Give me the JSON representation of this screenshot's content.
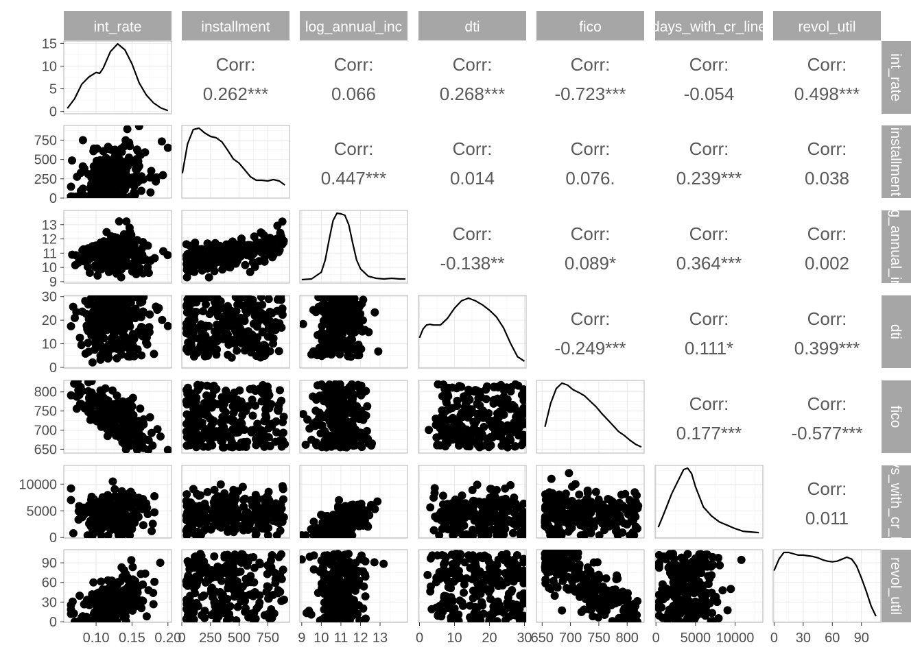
{
  "chart_data": {
    "type": "scatter-matrix",
    "variables": [
      "int_rate",
      "installment",
      "log_annual_inc",
      "dti",
      "fico",
      "days_with_cr_line",
      "revol_util"
    ],
    "column_strip_labels": [
      "int_rate",
      "installment",
      "log_annual_inc",
      "dti",
      "fico",
      "days_with_cr_line",
      "revol_util"
    ],
    "row_strip_labels": [
      "int_rate",
      "installment",
      "log_annual_inc",
      "dti",
      "fico",
      "days_with_cr_line",
      "revol_util"
    ],
    "corr_label": "Corr:",
    "correlations": [
      {
        "row": 0,
        "col": 1,
        "value": "0.262***"
      },
      {
        "row": 0,
        "col": 2,
        "value": "0.066"
      },
      {
        "row": 0,
        "col": 3,
        "value": "0.268***"
      },
      {
        "row": 0,
        "col": 4,
        "value": "-0.723***"
      },
      {
        "row": 0,
        "col": 5,
        "value": "-0.054"
      },
      {
        "row": 0,
        "col": 6,
        "value": "0.498***"
      },
      {
        "row": 1,
        "col": 2,
        "value": "0.447***"
      },
      {
        "row": 1,
        "col": 3,
        "value": "0.014"
      },
      {
        "row": 1,
        "col": 4,
        "value": "0.076."
      },
      {
        "row": 1,
        "col": 5,
        "value": "0.239***"
      },
      {
        "row": 1,
        "col": 6,
        "value": "0.038"
      },
      {
        "row": 2,
        "col": 3,
        "value": "-0.138**"
      },
      {
        "row": 2,
        "col": 4,
        "value": "0.089*"
      },
      {
        "row": 2,
        "col": 5,
        "value": "0.364***"
      },
      {
        "row": 2,
        "col": 6,
        "value": "0.002"
      },
      {
        "row": 3,
        "col": 4,
        "value": "-0.249***"
      },
      {
        "row": 3,
        "col": 5,
        "value": "0.111*"
      },
      {
        "row": 3,
        "col": 6,
        "value": "0.399***"
      },
      {
        "row": 4,
        "col": 5,
        "value": "0.177***"
      },
      {
        "row": 4,
        "col": 6,
        "value": "-0.577***"
      },
      {
        "row": 5,
        "col": 6,
        "value": "0.011"
      }
    ],
    "x_axes": [
      {
        "range": [
          0.055,
          0.205
        ],
        "ticks": [
          0.1,
          0.15,
          0.2
        ],
        "tick_labels": [
          "0.10",
          "0.15",
          "0.20"
        ]
      },
      {
        "range": [
          0,
          940
        ],
        "ticks": [
          0,
          250,
          500,
          750
        ],
        "tick_labels": [
          "0",
          "250",
          "500",
          "750"
        ]
      },
      {
        "range": [
          8.9,
          14.4
        ],
        "ticks": [
          9,
          10,
          11,
          12,
          13
        ],
        "tick_labels": [
          "9",
          "10",
          "11",
          "12",
          "13"
        ]
      },
      {
        "range": [
          -0.3,
          30.5
        ],
        "ticks": [
          0,
          10,
          20,
          30
        ],
        "tick_labels": [
          "0",
          "10",
          "20",
          "30"
        ]
      },
      {
        "range": [
          640,
          830
        ],
        "ticks": [
          650,
          700,
          750,
          800
        ],
        "tick_labels": [
          "650",
          "700",
          "750",
          "800"
        ]
      },
      {
        "range": [
          -100,
          13500
        ],
        "ticks": [
          0,
          5000,
          10000
        ],
        "tick_labels": [
          "0",
          "5000",
          "10000"
        ]
      },
      {
        "range": [
          -1,
          110
        ],
        "ticks": [
          0,
          30,
          60,
          90
        ],
        "tick_labels": [
          "0",
          "30",
          "60",
          "90"
        ]
      }
    ],
    "y_axes": [
      {
        "range": [
          -0.5,
          15.5
        ],
        "ticks": [
          0,
          5,
          10,
          15
        ],
        "tick_labels": [
          "0",
          "5",
          "10",
          "15"
        ]
      },
      {
        "range": [
          0,
          940
        ],
        "ticks": [
          0,
          250,
          500,
          750
        ],
        "tick_labels": [
          "0",
          "250",
          "500",
          "750"
        ]
      },
      {
        "range": [
          8.9,
          14.0
        ],
        "ticks": [
          9,
          10,
          11,
          12,
          13
        ],
        "tick_labels": [
          "9",
          "10",
          "11",
          "12",
          "13"
        ]
      },
      {
        "range": [
          -0.3,
          30.5
        ],
        "ticks": [
          0,
          10,
          20,
          30
        ],
        "tick_labels": [
          "0",
          "10",
          "20",
          "30"
        ]
      },
      {
        "range": [
          640,
          830
        ],
        "ticks": [
          650,
          700,
          750,
          800
        ],
        "tick_labels": [
          "650",
          "700",
          "750",
          "800"
        ]
      },
      {
        "range": [
          -100,
          13500
        ],
        "ticks": [
          0,
          5000,
          10000
        ],
        "tick_labels": [
          "0",
          "5000",
          "10000"
        ]
      },
      {
        "range": [
          -1,
          110
        ],
        "ticks": [
          0,
          30,
          60,
          90
        ],
        "tick_labels": [
          "0",
          "30",
          "60",
          "90"
        ]
      }
    ],
    "densities": [
      {
        "x": [
          0.06,
          0.07,
          0.08,
          0.09,
          0.1,
          0.105,
          0.11,
          0.12,
          0.13,
          0.14,
          0.15,
          0.16,
          0.17,
          0.18,
          0.19,
          0.2
        ],
        "y": [
          0.7,
          2.8,
          6.0,
          7.6,
          8.6,
          8.4,
          9.6,
          13.2,
          14.9,
          13.6,
          10.5,
          6.3,
          3.6,
          1.9,
          0.8,
          0.2
        ]
      },
      {
        "x": [
          5,
          50,
          100,
          150,
          200,
          250,
          300,
          350,
          400,
          450,
          500,
          550,
          600,
          650,
          700,
          750,
          800,
          850,
          900
        ],
        "y": [
          0.32,
          0.75,
          0.96,
          0.98,
          0.91,
          0.86,
          0.84,
          0.78,
          0.66,
          0.53,
          0.47,
          0.37,
          0.27,
          0.22,
          0.22,
          0.21,
          0.23,
          0.21,
          0.15
        ]
      },
      {
        "x": [
          9.0,
          9.5,
          10.0,
          10.2,
          10.4,
          10.6,
          10.8,
          11.0,
          11.2,
          11.4,
          11.6,
          11.8,
          12.0,
          12.4,
          12.8,
          13.2,
          13.6,
          14.0,
          14.3
        ],
        "y": [
          0.01,
          0.02,
          0.12,
          0.3,
          0.6,
          0.88,
          0.99,
          0.98,
          0.96,
          0.82,
          0.55,
          0.3,
          0.17,
          0.06,
          0.03,
          0.02,
          0.03,
          0.02,
          0.02
        ]
      },
      {
        "x": [
          0,
          1,
          2,
          3,
          4,
          6,
          8,
          10,
          12,
          14,
          16,
          18,
          20,
          22,
          24,
          26,
          28,
          30
        ],
        "y": [
          0.41,
          0.54,
          0.6,
          0.61,
          0.6,
          0.6,
          0.7,
          0.85,
          0.96,
          1.0,
          0.96,
          0.9,
          0.82,
          0.72,
          0.56,
          0.33,
          0.13,
          0.06
        ]
      },
      {
        "x": [
          655,
          665,
          675,
          685,
          695,
          705,
          715,
          725,
          735,
          745,
          755,
          765,
          775,
          785,
          795,
          805,
          815,
          825
        ],
        "y": [
          0.35,
          0.7,
          0.92,
          1.0,
          0.97,
          0.9,
          0.86,
          0.81,
          0.73,
          0.65,
          0.55,
          0.46,
          0.37,
          0.28,
          0.22,
          0.15,
          0.09,
          0.05
        ]
      },
      {
        "x": [
          300,
          1000,
          2000,
          3000,
          3500,
          4000,
          4500,
          5000,
          6000,
          7000,
          8000,
          9000,
          10000,
          11000,
          12000,
          13000
        ],
        "y": [
          0.12,
          0.32,
          0.62,
          0.86,
          0.98,
          1.0,
          0.92,
          0.72,
          0.42,
          0.29,
          0.2,
          0.15,
          0.1,
          0.06,
          0.05,
          0.04
        ]
      },
      {
        "x": [
          0,
          5,
          10,
          15,
          20,
          25,
          30,
          35,
          40,
          45,
          50,
          55,
          60,
          65,
          70,
          75,
          80,
          85,
          90,
          95,
          100,
          105
        ],
        "y": [
          0.73,
          0.9,
          1.0,
          1.0,
          0.98,
          0.96,
          0.96,
          0.95,
          0.94,
          0.92,
          0.89,
          0.87,
          0.86,
          0.87,
          0.9,
          0.93,
          0.9,
          0.8,
          0.62,
          0.42,
          0.2,
          0.05
        ]
      }
    ],
    "points": "many black points per lower-triangle panel (scatter of variable pairs)",
    "grid": true,
    "background": "#ffffff",
    "colors": {
      "strip": "#a6a6a6",
      "strip_text": "#ffffff",
      "corr_text": "#595959",
      "point": "#000000",
      "grid": "#ebebeb",
      "axis_text": "#4d4d4d"
    }
  }
}
